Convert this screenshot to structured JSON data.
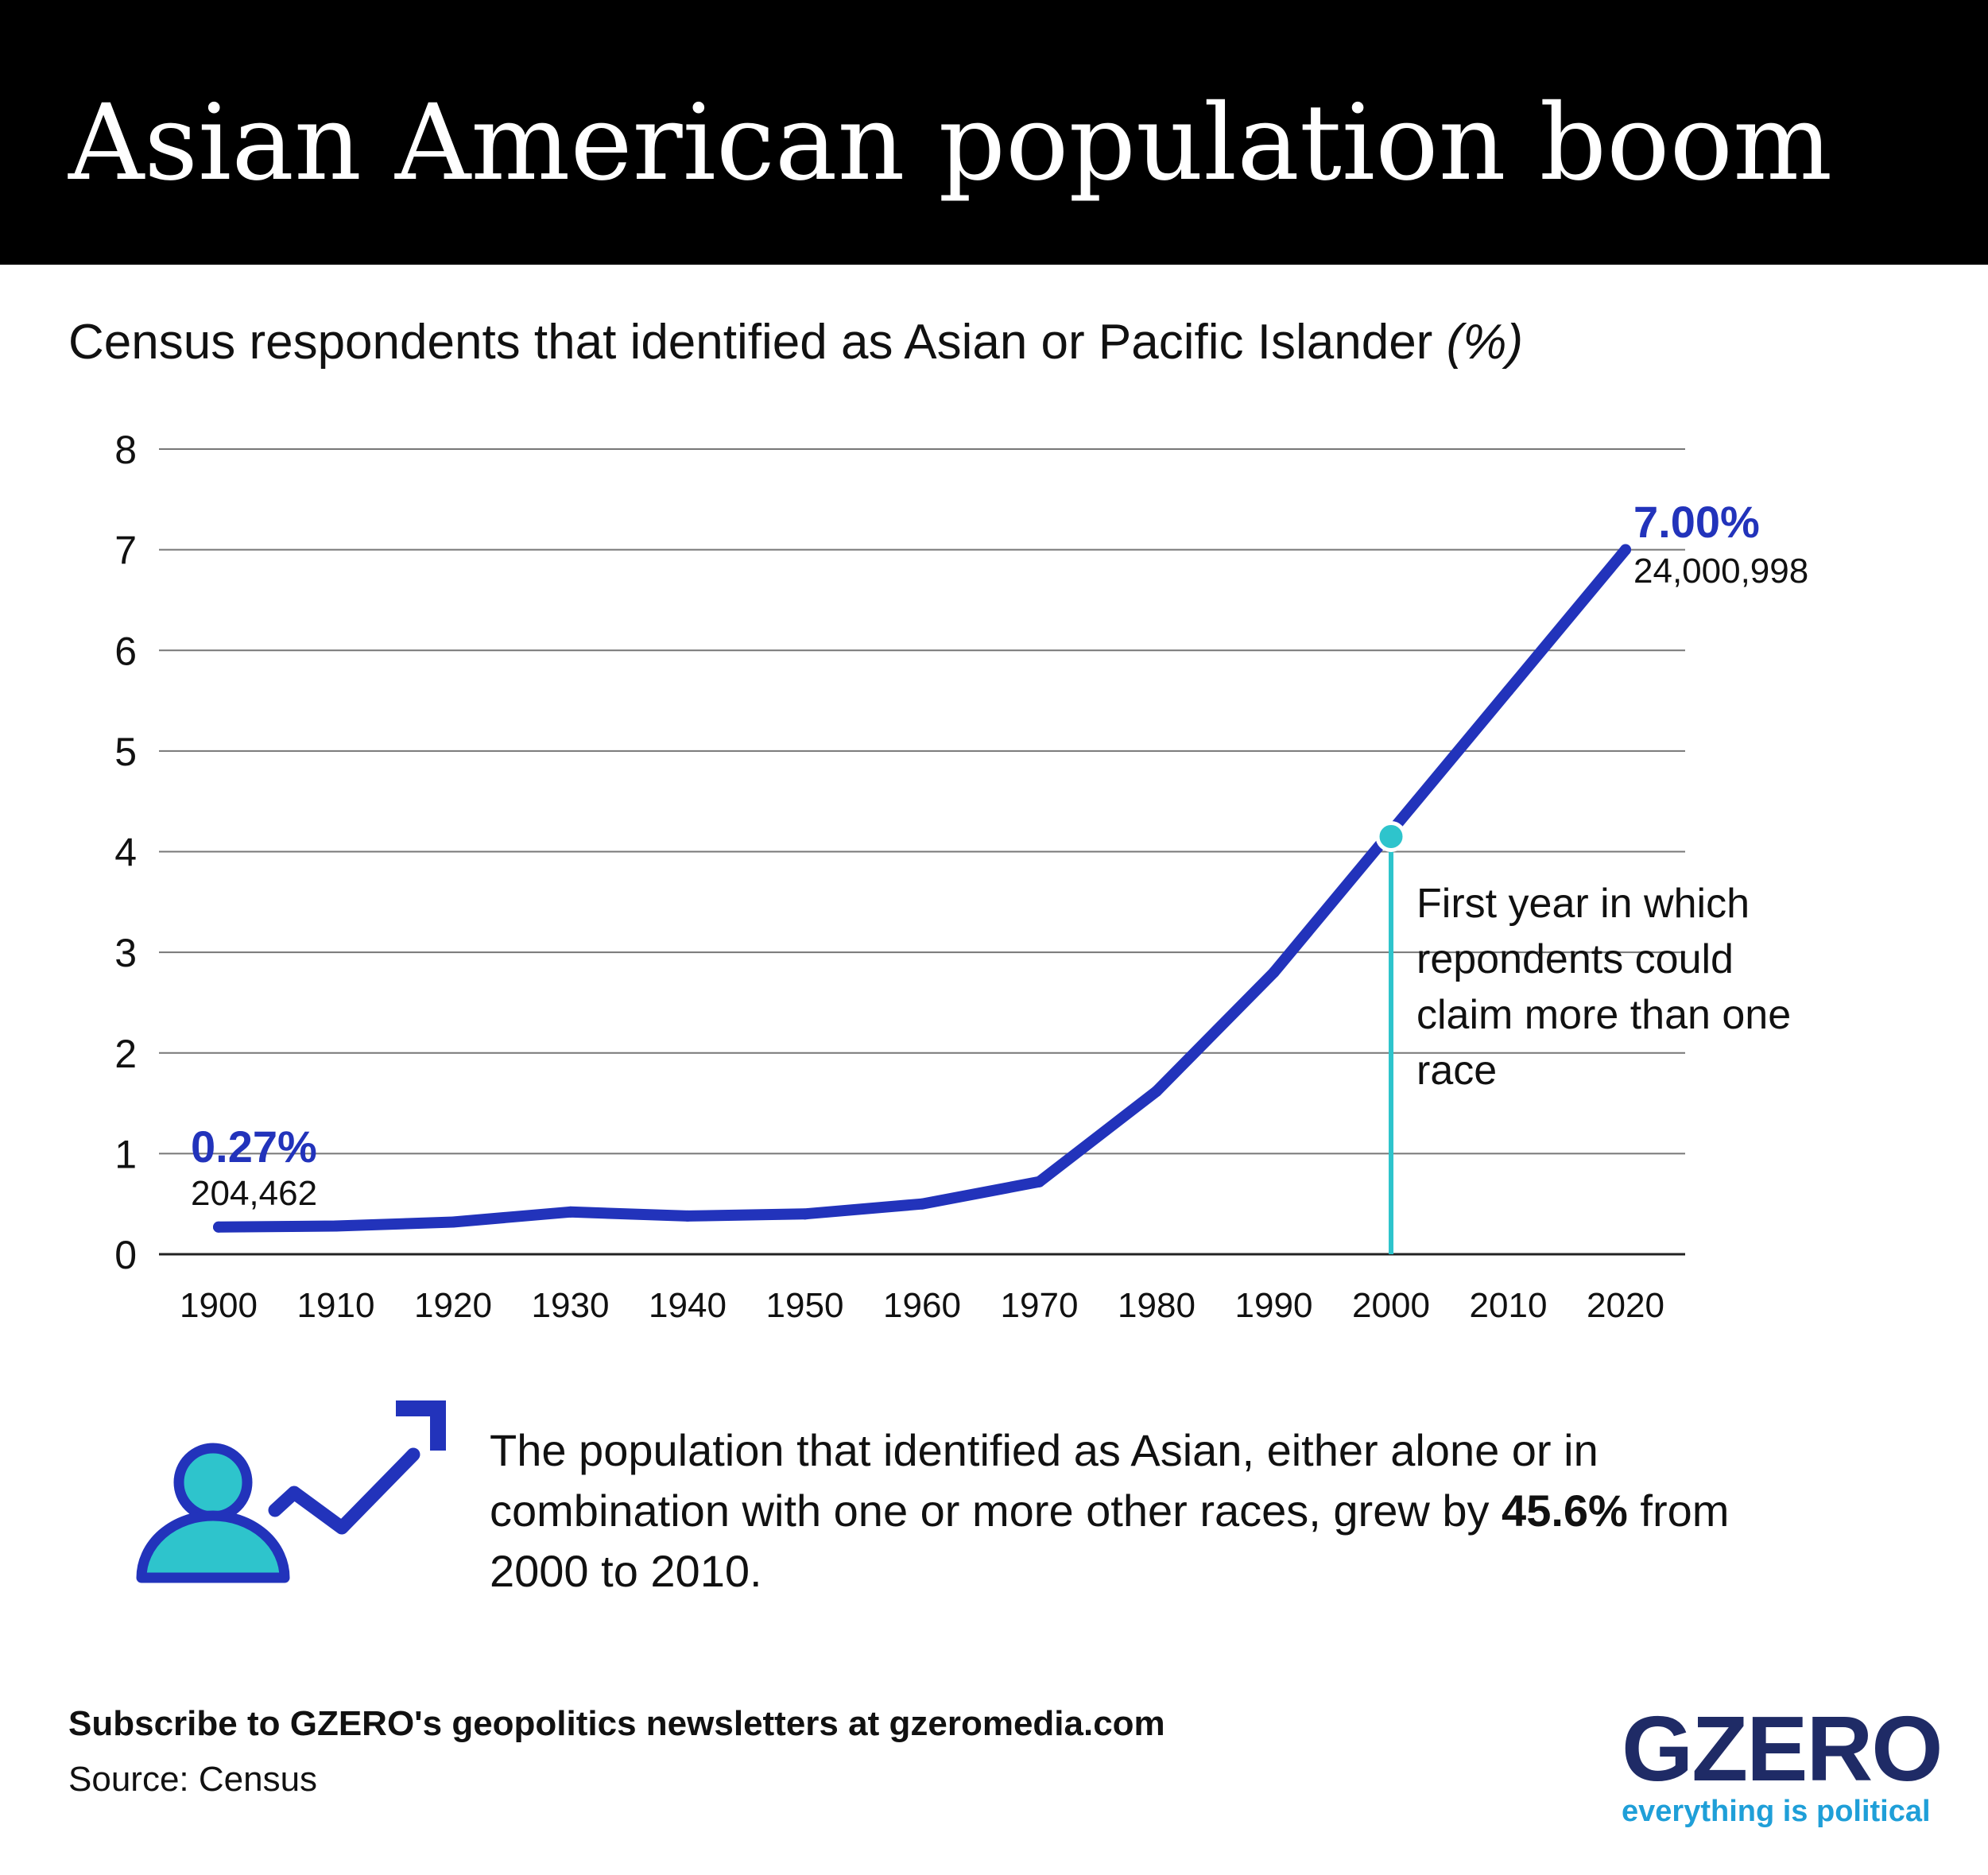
{
  "header": {
    "title": "Asian American population boom"
  },
  "subtitle": {
    "main": "Census respondents that identified as Asian or Pacific Islander ",
    "unit": "(%)"
  },
  "chart_data": {
    "type": "line",
    "title": "Asian American population boom",
    "subtitle": "Census respondents that identified as Asian or Pacific Islander (%)",
    "x": [
      1900,
      1910,
      1920,
      1930,
      1940,
      1950,
      1960,
      1970,
      1980,
      1990,
      2000,
      2010,
      2020
    ],
    "series": [
      {
        "values": [
          0.27,
          0.28,
          0.32,
          0.42,
          0.38,
          0.4,
          0.5,
          0.72,
          1.62,
          2.8,
          4.2,
          5.6,
          7.0
        ]
      }
    ],
    "ylim": [
      0,
      8
    ],
    "yticks": [
      "0",
      "1",
      "2",
      "3",
      "4",
      "5",
      "6",
      "7",
      "8"
    ],
    "xticks": [
      "1900",
      "1910",
      "1920",
      "1930",
      "1940",
      "1950",
      "1960",
      "1970",
      "1980",
      "1990",
      "2000",
      "2010",
      "2020"
    ],
    "grid": true,
    "line_color": "#2233bb",
    "highlight_color": "#2ec4cc",
    "highlight": {
      "x": 2000,
      "y": 4.15
    },
    "start_label": {
      "pct": "0.27%",
      "count": "204,462"
    },
    "end_label": {
      "pct": "7.00%",
      "count": "24,000,998"
    },
    "annotation": "First year in which repondents could claim more than one race"
  },
  "note": {
    "text_before": "The population that identified as Asian, either alone or in combination with one or more other races, grew by ",
    "highlight": "45.6%",
    "text_after": " from 2000 to 2010."
  },
  "footer": {
    "subscribe": "Subscribe to GZERO's geopolitics newsletters at gzeromedia.com",
    "source": "Source: Census",
    "logo": "GZERO",
    "tagline": "everything is political"
  },
  "icons": {
    "population_growth": "person-trend-up-icon"
  },
  "colors": {
    "header_bg": "#000000",
    "logo_navy": "#1f2b66",
    "tagline_blue": "#1f9fd8"
  }
}
